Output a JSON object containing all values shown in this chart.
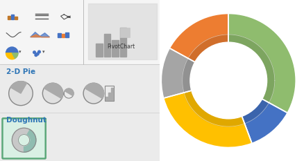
{
  "bg_color": "#ffffff",
  "ribbon_bg": "#f5f5f5",
  "panel_bg": "#e8e8e8",
  "slices": [
    {
      "label": "green",
      "value": 35,
      "color": "#8fbc6e"
    },
    {
      "label": "blue",
      "value": 12,
      "color": "#4472c4"
    },
    {
      "label": "yellow",
      "value": 28,
      "color": "#ffc000"
    },
    {
      "label": "gray",
      "value": 13,
      "color": "#a5a5a5"
    },
    {
      "label": "orange",
      "value": 18,
      "color": "#ed7d31"
    }
  ],
  "inner_darken": 0.82,
  "donut_outer_r": 1.0,
  "donut_width": 0.42,
  "inner_band_ratio": 0.72,
  "arrow_color": "#f0a060",
  "box_fill": "#d9f0e4",
  "box_edge": "#5ca87a",
  "pie_section_label": "2-D Pie",
  "donut_section_label": "Doughnut",
  "pivot_label": "PivotChart",
  "label_color": "#2e75b6",
  "text_color": "#333333"
}
